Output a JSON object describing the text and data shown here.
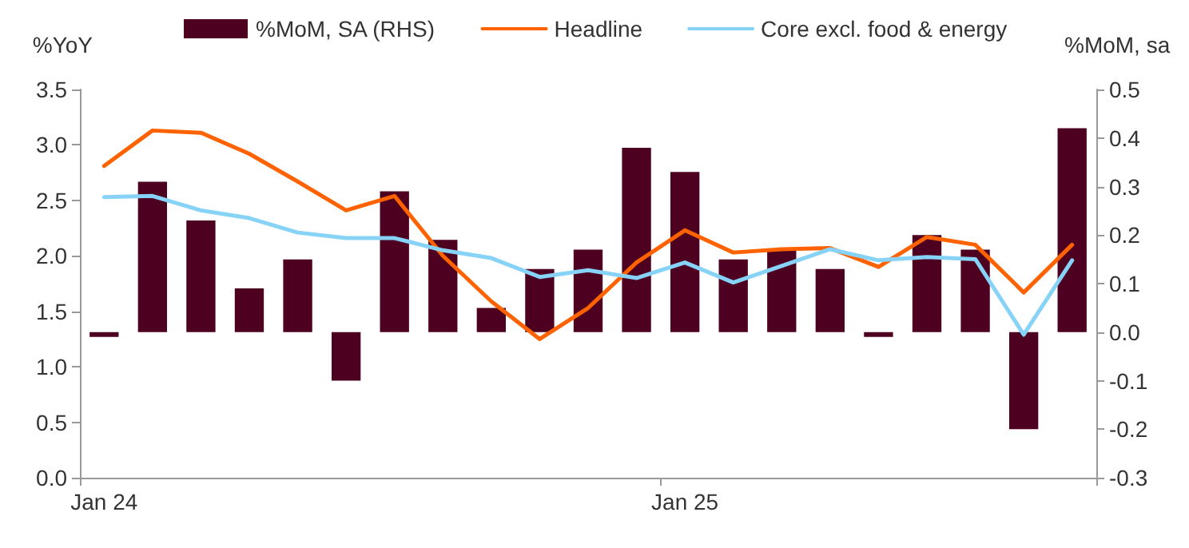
{
  "chart_data": {
    "type": "bar",
    "ylabel": "%YoY",
    "y2label": "%MoM, sa",
    "categories": [
      "Jan 24",
      null,
      null,
      null,
      null,
      null,
      null,
      null,
      null,
      null,
      null,
      null,
      "Jan 25",
      null,
      null,
      null,
      null,
      null,
      null,
      null,
      null
    ],
    "series": [
      {
        "name": "%MoM, SA (RHS)",
        "axis": "y2",
        "color": "#4d0020",
        "values": [
          -0.01,
          0.31,
          0.23,
          0.09,
          0.15,
          -0.1,
          0.29,
          0.19,
          0.05,
          0.13,
          0.17,
          0.38,
          0.33,
          0.15,
          0.17,
          0.13,
          -0.01,
          0.2,
          0.17,
          -0.2,
          0.42
        ]
      },
      {
        "name": "Headline",
        "type": "line",
        "color": "#ff6200",
        "values": [
          2.81,
          3.13,
          3.11,
          2.92,
          2.67,
          2.41,
          2.54,
          2.0,
          1.59,
          1.25,
          1.53,
          1.94,
          2.23,
          2.03,
          2.06,
          2.07,
          1.9,
          2.17,
          2.1,
          1.67,
          2.1
        ]
      },
      {
        "name": "Core excl. food & energy",
        "type": "line",
        "color": "#87d3f8",
        "values": [
          2.53,
          2.54,
          2.41,
          2.34,
          2.21,
          2.16,
          2.16,
          2.05,
          1.98,
          1.81,
          1.87,
          1.8,
          1.94,
          1.76,
          1.91,
          2.06,
          1.96,
          1.99,
          1.97,
          1.29,
          1.96
        ]
      }
    ],
    "ylim": [
      0,
      3.5
    ],
    "yticks": [
      {
        "value": 0,
        "label": "0.0"
      },
      0.5,
      {
        "value": 1,
        "label": "1.0"
      },
      1.5,
      {
        "value": 2,
        "label": "2.0"
      },
      2.5,
      {
        "value": 3,
        "label": "3.0"
      },
      3.5
    ],
    "y2lim": [
      -0.3,
      0.5
    ],
    "y2ticks": [
      -0.3,
      -0.2,
      -0.1,
      {
        "value": 0,
        "label": "0.0"
      },
      0.1,
      0.2,
      0.3,
      0.4,
      0.5
    ],
    "legend": "top",
    "grid": false,
    "marker": "none",
    "line_style": "solid"
  }
}
